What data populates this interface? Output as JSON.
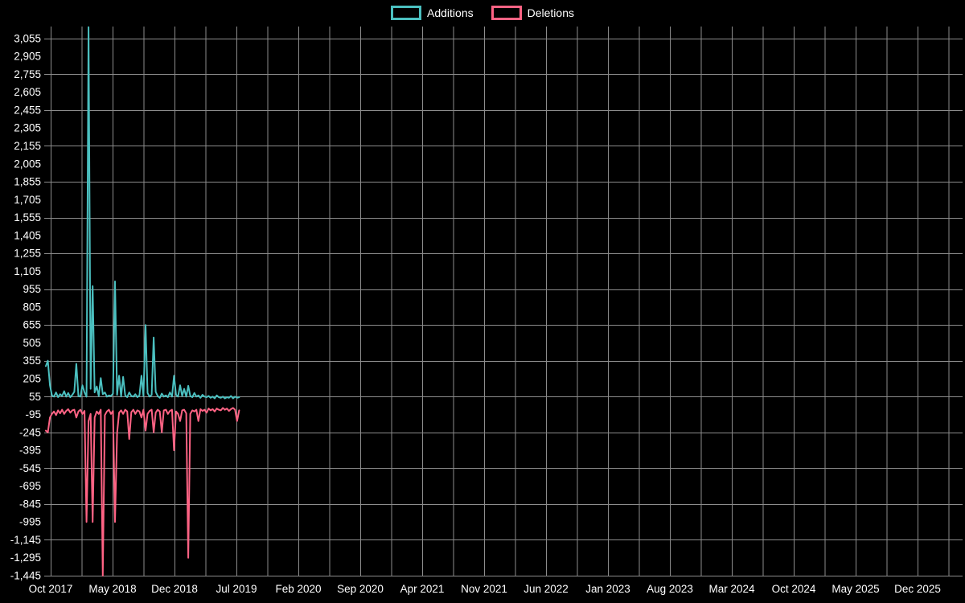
{
  "legend": {
    "items": [
      {
        "label": "Additions",
        "color": "#4bc0c0"
      },
      {
        "label": "Deletions",
        "color": "#ff6384"
      }
    ]
  },
  "chart_data": {
    "type": "line",
    "title": "",
    "background": "#000000",
    "grid": true,
    "grid_color": "#8c8c8c",
    "legend_position": "top",
    "x_axis": {
      "tick_labels": [
        "Oct 2017",
        "May 2018",
        "Dec 2018",
        "Jul 2019",
        "Feb 2020",
        "Sep 2020",
        "Apr 2021",
        "Nov 2021",
        "Jun 2022",
        "Jan 2023",
        "Aug 2023",
        "Mar 2024",
        "Oct 2024",
        "May 2025",
        "Dec 2025"
      ],
      "tick_interval_months": 7,
      "point_interval": "weekly",
      "data_start": "Oct 2017",
      "data_end": "Aug 2019"
    },
    "y_axis": {
      "range": [
        -1445,
        3155
      ],
      "step": 150,
      "tick_values": [
        3055,
        2905,
        2755,
        2605,
        2455,
        2305,
        2155,
        2005,
        1855,
        1705,
        1555,
        1405,
        1255,
        1105,
        955,
        805,
        655,
        505,
        355,
        205,
        55,
        -95,
        -245,
        -395,
        -545,
        -695,
        -845,
        -995,
        -1145,
        -1295,
        -1445
      ]
    },
    "series": [
      {
        "name": "Additions",
        "color": "#4bc0c0",
        "values": [
          310,
          355,
          150,
          65,
          55,
          90,
          50,
          75,
          60,
          100,
          55,
          85,
          50,
          70,
          95,
          330,
          60,
          55,
          150,
          90,
          55,
          3150,
          120,
          980,
          90,
          140,
          60,
          210,
          75,
          90,
          55,
          65,
          60,
          80,
          1020,
          70,
          230,
          55,
          220,
          65,
          50,
          90,
          60,
          55,
          75,
          50,
          65,
          230,
          60,
          655,
          85,
          55,
          70,
          550,
          95,
          60,
          45,
          80,
          55,
          65,
          50,
          90,
          55,
          230,
          70,
          55,
          150,
          60,
          120,
          55,
          145,
          60,
          50,
          85,
          55,
          65,
          45,
          70,
          55,
          50,
          60,
          45,
          55,
          40,
          65,
          50,
          45,
          55,
          40,
          50,
          45,
          60,
          40,
          55,
          45,
          50
        ]
      },
      {
        "name": "Deletions",
        "color": "#ff6384",
        "values": [
          -230,
          -245,
          -120,
          -90,
          -70,
          -100,
          -60,
          -85,
          -55,
          -90,
          -65,
          -50,
          -80,
          -60,
          -55,
          -120,
          -70,
          -55,
          -90,
          -65,
          -995,
          -150,
          -90,
          -995,
          -120,
          -70,
          -90,
          -55,
          -1445,
          -100,
          -70,
          -55,
          -90,
          -65,
          -995,
          -250,
          -80,
          -60,
          -90,
          -55,
          -70,
          -300,
          -75,
          -55,
          -90,
          -60,
          -70,
          -120,
          -55,
          -230,
          -90,
          -65,
          -55,
          -245,
          -80,
          -55,
          -70,
          -245,
          -60,
          -55,
          -90,
          -65,
          -55,
          -395,
          -70,
          -90,
          -150,
          -60,
          -55,
          -85,
          -1295,
          -90,
          -60,
          -70,
          -55,
          -150,
          -50,
          -65,
          -55,
          -80,
          -45,
          -60,
          -50,
          -70,
          -45,
          -55,
          -60,
          -40,
          -55,
          -45,
          -65,
          -50,
          -40,
          -55,
          -150,
          -60
        ]
      }
    ]
  }
}
